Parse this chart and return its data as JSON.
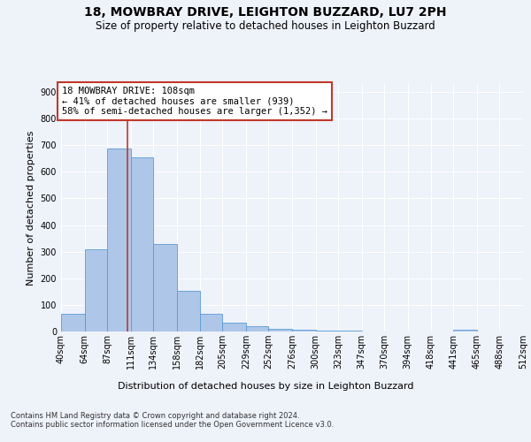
{
  "title_line1": "18, MOWBRAY DRIVE, LEIGHTON BUZZARD, LU7 2PH",
  "title_line2": "Size of property relative to detached houses in Leighton Buzzard",
  "xlabel": "Distribution of detached houses by size in Leighton Buzzard",
  "ylabel": "Number of detached properties",
  "footnote": "Contains HM Land Registry data © Crown copyright and database right 2024.\nContains public sector information licensed under the Open Government Licence v3.0.",
  "bar_edges": [
    40,
    64,
    87,
    111,
    134,
    158,
    182,
    205,
    229,
    252,
    276,
    300,
    323,
    347,
    370,
    394,
    418,
    441,
    465,
    488,
    512
  ],
  "bar_heights": [
    65,
    310,
    688,
    655,
    330,
    152,
    68,
    33,
    20,
    11,
    8,
    4,
    2,
    1,
    0,
    0,
    0,
    8,
    0,
    0,
    0
  ],
  "bar_color": "#aec6e8",
  "bar_edgecolor": "#5b9bd5",
  "property_size": 108,
  "vline_color": "#c0392b",
  "annotation_text": "18 MOWBRAY DRIVE: 108sqm\n← 41% of detached houses are smaller (939)\n58% of semi-detached houses are larger (1,352) →",
  "annotation_box_color": "#c0392b",
  "ylim": [
    0,
    930
  ],
  "yticks": [
    0,
    100,
    200,
    300,
    400,
    500,
    600,
    700,
    800,
    900
  ],
  "bg_color": "#eef2f9",
  "plot_bg_color": "#eef2f9",
  "grid_color": "#ffffff",
  "title_fontsize": 10,
  "subtitle_fontsize": 8.5,
  "xlabel_fontsize": 8,
  "ylabel_fontsize": 8,
  "tick_fontsize": 7,
  "annotation_fontsize": 7.5,
  "footnote_fontsize": 6
}
